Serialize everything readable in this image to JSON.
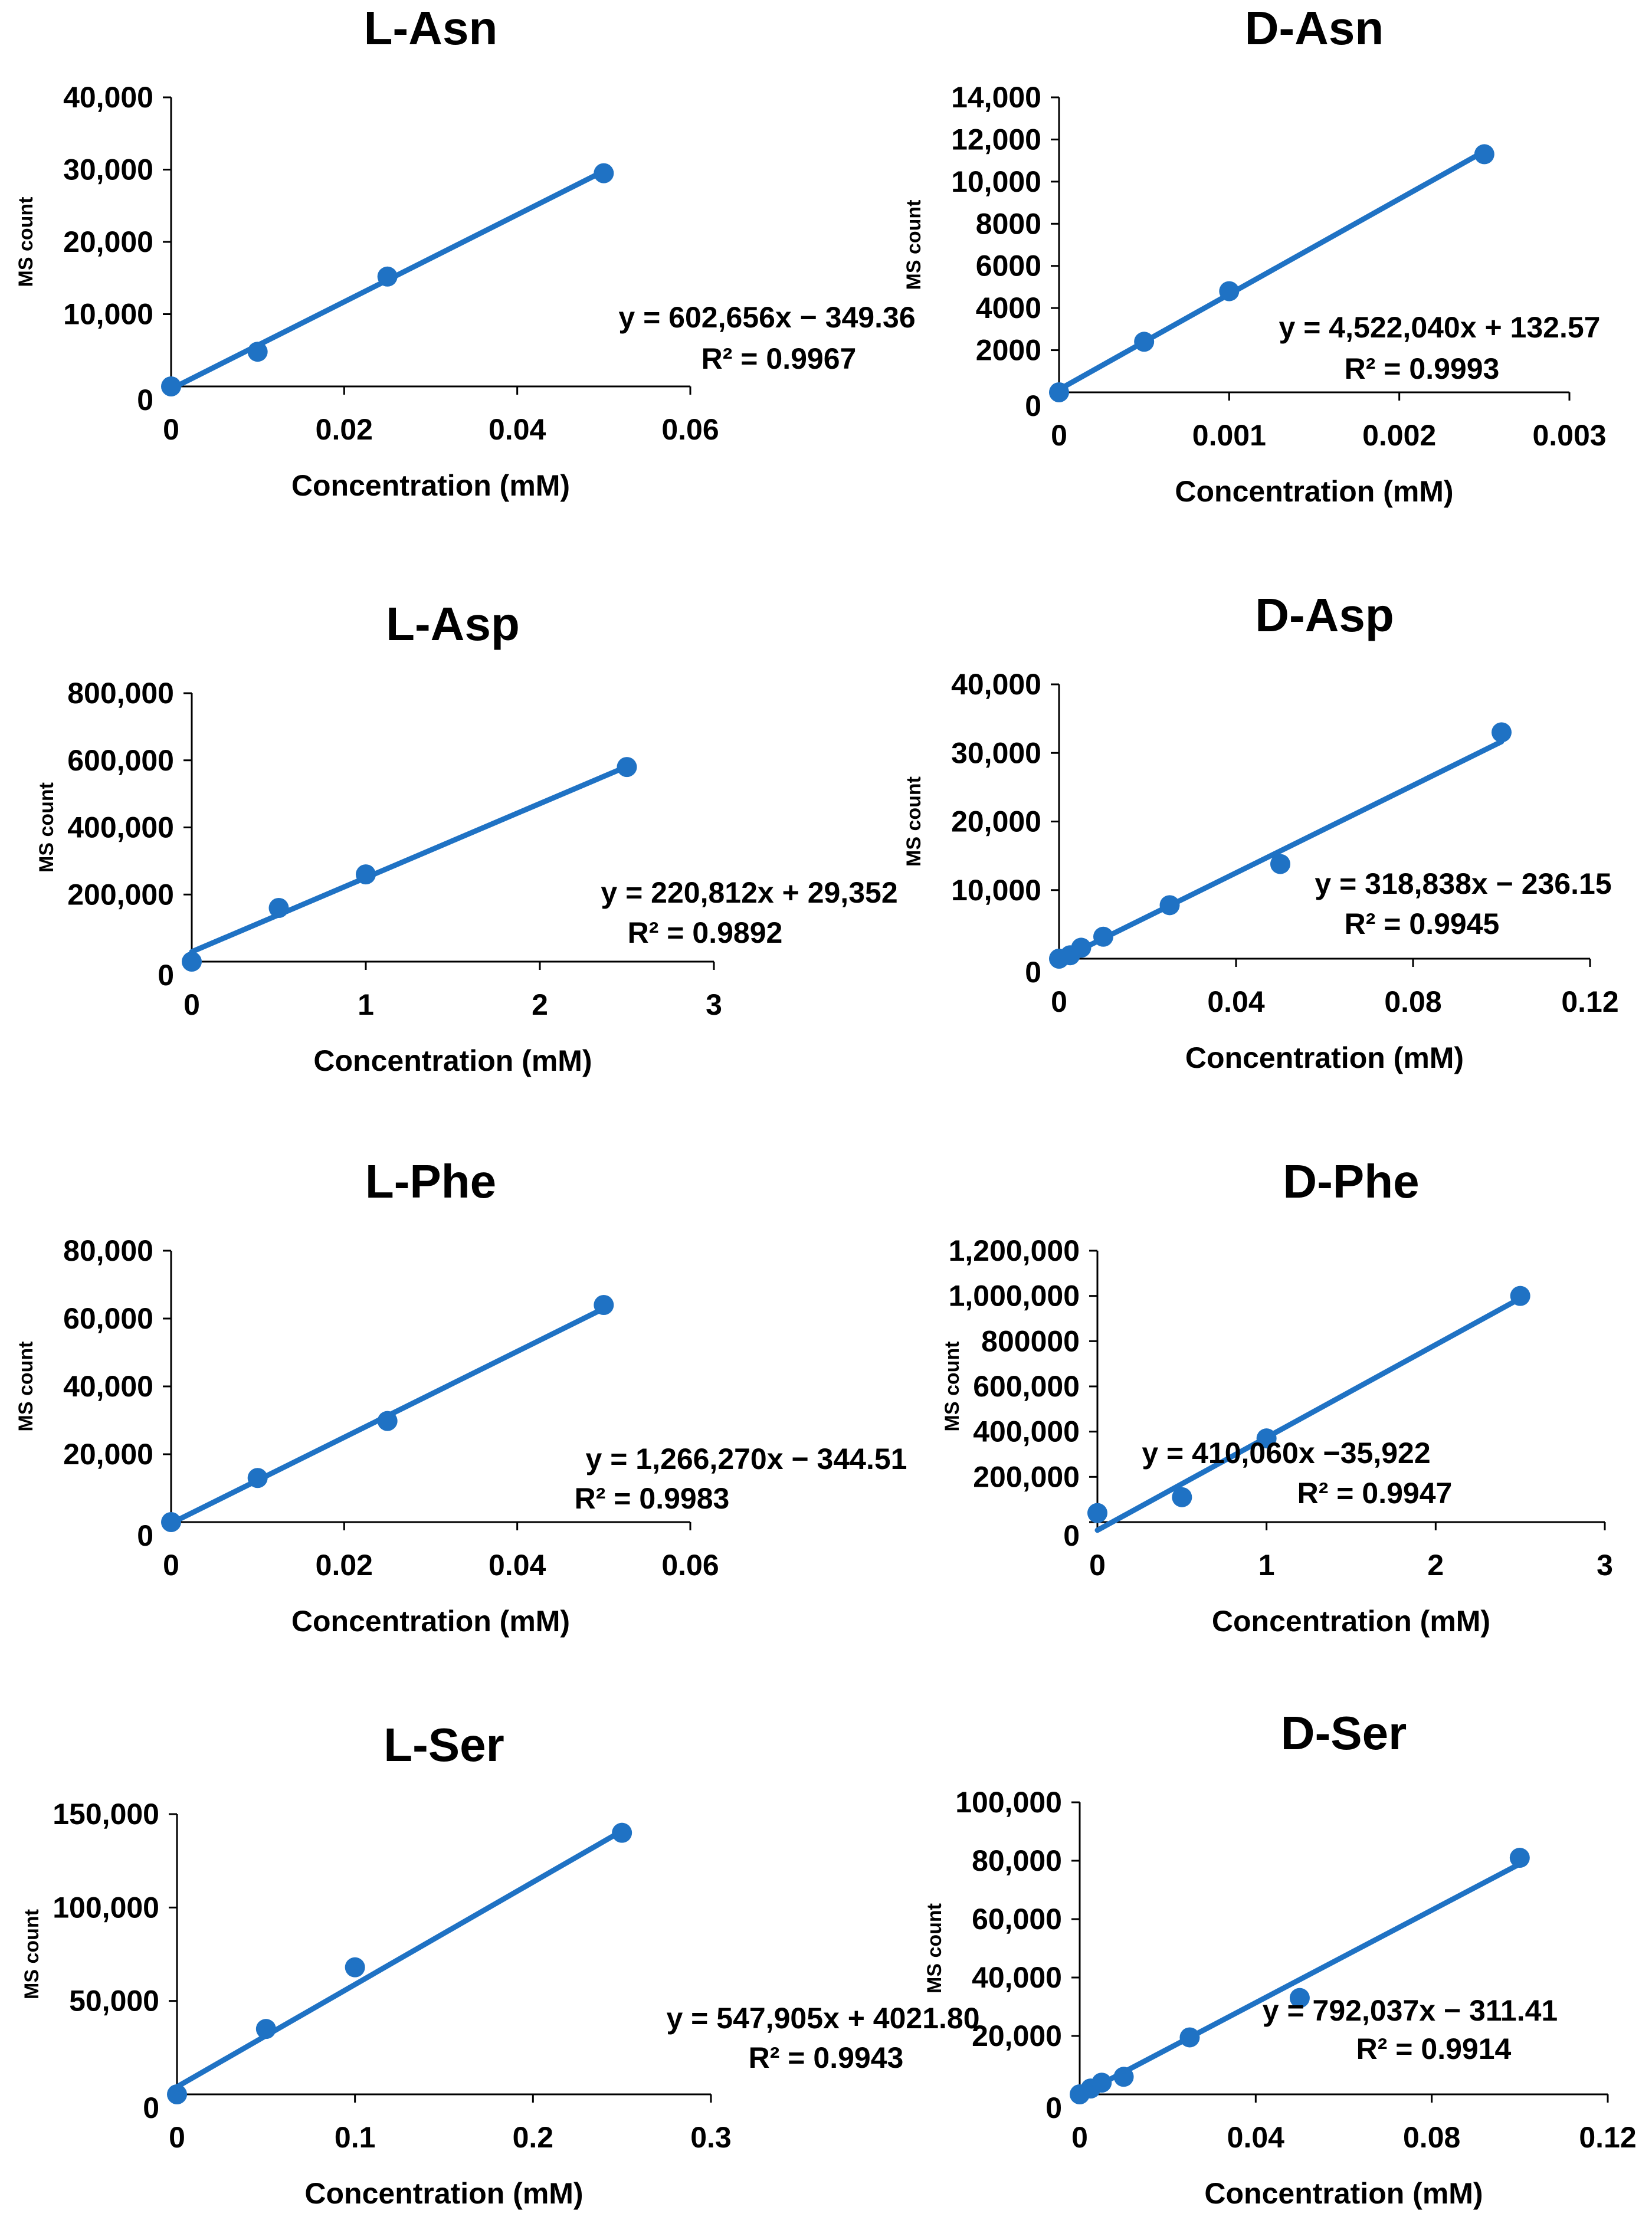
{
  "chart_data": [
    {
      "type": "scatter",
      "title": "L-Asn",
      "xlabel": "Concentration (mM)",
      "ylabel": "MS count",
      "xlim": [
        0,
        0.06
      ],
      "ylim": [
        0,
        40000
      ],
      "xticks": [
        "0",
        "0.02",
        "0.04",
        "0.06"
      ],
      "yticks": [
        "0",
        "10,000",
        "20,000",
        "30,000",
        "40,000"
      ],
      "x": [
        0,
        0.01,
        0.025,
        0.05
      ],
      "y": [
        0,
        4800,
        15200,
        29500
      ],
      "fit": {
        "slope": 602656,
        "intercept": -349.36
      },
      "equation": "y = 602,656x − 349.36",
      "r2": "R² = 0.9967"
    },
    {
      "type": "scatter",
      "title": "D-Asn",
      "xlabel": "Concentration (mM)",
      "ylabel": "MS count",
      "xlim": [
        0,
        0.003
      ],
      "ylim": [
        0,
        14000
      ],
      "xticks": [
        "0",
        "0.001",
        "0.002",
        "0.003"
      ],
      "yticks": [
        "0",
        "2000",
        "4000",
        "6000",
        "8000",
        "10,000",
        "12,000",
        "14,000"
      ],
      "x": [
        0,
        0.0005,
        0.001,
        0.0025
      ],
      "y": [
        0,
        2400,
        4800,
        11300
      ],
      "fit": {
        "slope": 4522040,
        "intercept": 132.57
      },
      "equation": "y = 4,522,040x + 132.57",
      "r2": "R² = 0.9993"
    },
    {
      "type": "scatter",
      "title": "L-Asp",
      "xlabel": "Concentration (mM)",
      "ylabel": "MS count",
      "xlim": [
        0,
        3
      ],
      "ylim": [
        0,
        800000
      ],
      "xticks": [
        "0",
        "1",
        "2",
        "3"
      ],
      "yticks": [
        "0",
        "200,000",
        "400,000",
        "600,000",
        "800,000"
      ],
      "x": [
        0,
        0.5,
        1,
        2.5
      ],
      "y": [
        0,
        160000,
        260000,
        580000
      ],
      "fit": {
        "slope": 220812,
        "intercept": 29352
      },
      "equation": "y = 220,812x + 29,352",
      "r2": "R² = 0.9892"
    },
    {
      "type": "scatter",
      "title": "D-Asp",
      "xlabel": "Concentration (mM)",
      "ylabel": "MS count",
      "xlim": [
        0,
        0.12
      ],
      "ylim": [
        0,
        40000
      ],
      "xticks": [
        "0",
        "0.04",
        "0.08",
        "0.12"
      ],
      "yticks": [
        "0",
        "10,000",
        "20,000",
        "30,000",
        "40,000"
      ],
      "x": [
        0,
        0.0025,
        0.005,
        0.01,
        0.025,
        0.05,
        0.1
      ],
      "y": [
        0,
        500,
        1600,
        3200,
        7800,
        13800,
        33000
      ],
      "fit": {
        "slope": 318838,
        "intercept": -236.15
      },
      "equation": "y = 318,838x − 236.15",
      "r2": "R² = 0.9945"
    },
    {
      "type": "scatter",
      "title": "L-Phe",
      "xlabel": "Concentration (mM)",
      "ylabel": "MS count",
      "xlim": [
        0,
        0.06
      ],
      "ylim": [
        0,
        80000
      ],
      "xticks": [
        "0",
        "0.02",
        "0.04",
        "0.06"
      ],
      "yticks": [
        "0",
        "20,000",
        "40,000",
        "60,000",
        "80,000"
      ],
      "x": [
        0,
        0.01,
        0.025,
        0.05
      ],
      "y": [
        0,
        13000,
        29800,
        64000
      ],
      "fit": {
        "slope": 1266270,
        "intercept": -344.51
      },
      "equation": "y = 1,266,270x − 344.51",
      "r2": "R² = 0.9983"
    },
    {
      "type": "scatter",
      "title": "D-Phe",
      "xlabel": "Concentration (mM)",
      "ylabel": "MS count",
      "xlim": [
        0,
        3
      ],
      "ylim": [
        0,
        1200000
      ],
      "xticks": [
        "0",
        "1",
        "2",
        "3"
      ],
      "yticks": [
        "0",
        "200,000",
        "400,000",
        "600,000",
        "800000",
        "1,000,000",
        "1,200,000"
      ],
      "x": [
        0,
        0.5,
        1,
        2.5
      ],
      "y": [
        40000,
        110000,
        370000,
        1000000
      ],
      "fit": {
        "slope": 410060,
        "intercept": -35922
      },
      "equation": "y = 410,060x −35,922",
      "r2": "R² = 0.9947"
    },
    {
      "type": "scatter",
      "title": "L-Ser",
      "xlabel": "Concentration (mM)",
      "ylabel": "MS count",
      "xlim": [
        0,
        0.3
      ],
      "ylim": [
        0,
        150000
      ],
      "xticks": [
        "0",
        "0.1",
        "0.2",
        "0.3"
      ],
      "yticks": [
        "0",
        "50,000",
        "100,000",
        "150,000"
      ],
      "x": [
        0,
        0.05,
        0.1,
        0.25
      ],
      "y": [
        0,
        35000,
        68000,
        140000
      ],
      "fit": {
        "slope": 547905,
        "intercept": 4021.8
      },
      "equation": "y = 547,905x + 4021.80",
      "r2": "R² = 0.9943"
    },
    {
      "type": "scatter",
      "title": "D-Ser",
      "xlabel": "Concentration (mM)",
      "ylabel": "MS count",
      "xlim": [
        0,
        0.12
      ],
      "ylim": [
        0,
        100000
      ],
      "xticks": [
        "0",
        "0.04",
        "0.08",
        "0.12"
      ],
      "yticks": [
        "0",
        "20,000",
        "40,000",
        "60,000",
        "80,000",
        "100,000"
      ],
      "x": [
        0,
        0.0025,
        0.005,
        0.01,
        0.025,
        0.05,
        0.1
      ],
      "y": [
        0,
        2000,
        4000,
        6000,
        19500,
        33000,
        81000
      ],
      "fit": {
        "slope": 792037,
        "intercept": -311.41
      },
      "equation": "y = 792,037x − 311.41",
      "r2": "R² = 0.9914"
    }
  ],
  "colors": {
    "series": "#1f72c4",
    "axis": "#000000"
  }
}
